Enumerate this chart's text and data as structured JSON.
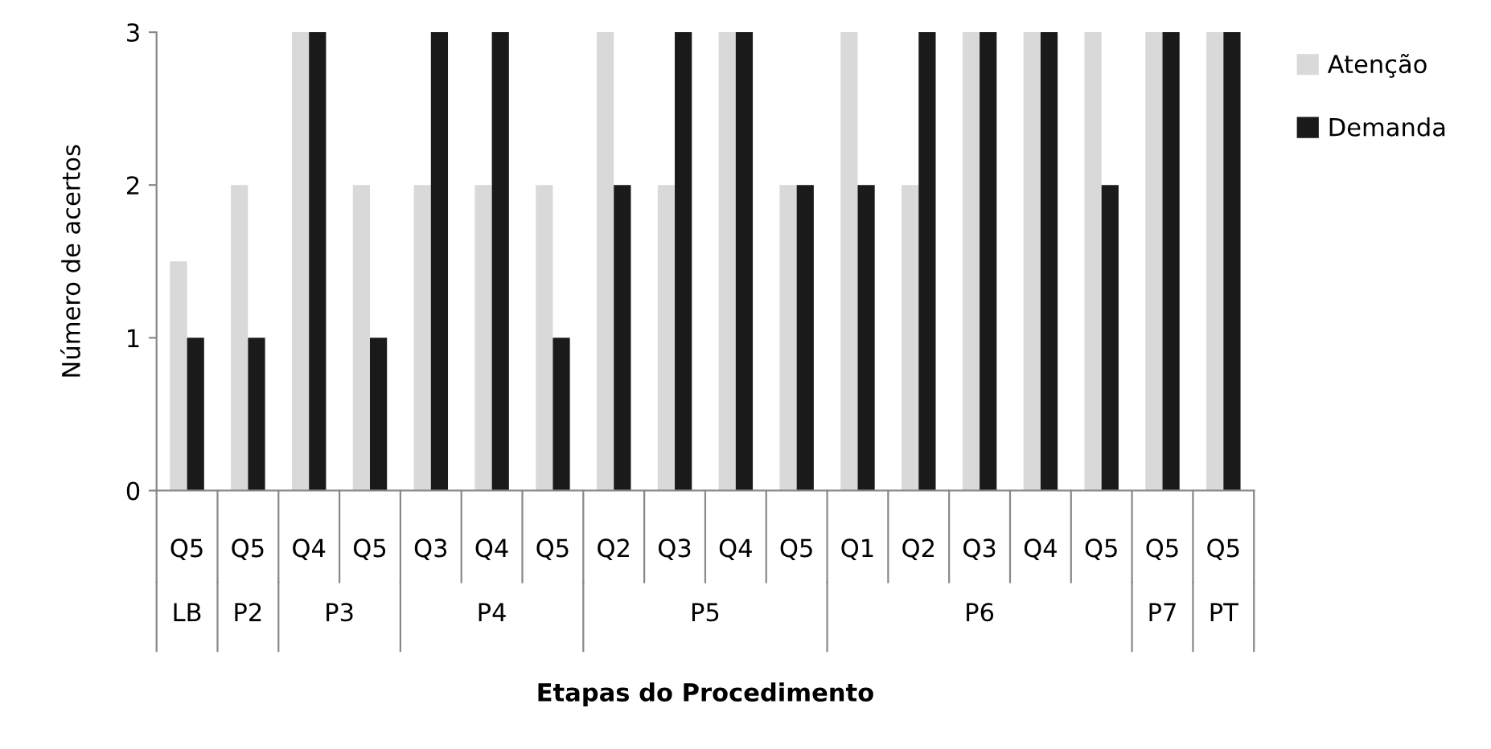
{
  "chart_data": {
    "type": "bar",
    "xlabel": "Etapas do Procedimento",
    "ylabel": "Número de acertos",
    "categories": [
      "Q5",
      "Q5",
      "Q4",
      "Q5",
      "Q3",
      "Q4",
      "Q5",
      "Q2",
      "Q3",
      "Q4",
      "Q5",
      "Q1",
      "Q2",
      "Q3",
      "Q4",
      "Q5",
      "Q5",
      "Q5"
    ],
    "series": [
      {
        "name": "Atenção",
        "color": "#d9d9d9",
        "values": [
          1.5,
          2,
          3,
          2,
          2,
          2,
          2,
          3,
          2,
          3,
          2,
          3,
          2,
          3,
          3,
          3,
          3,
          3
        ]
      },
      {
        "name": "Demanda",
        "color": "#1a1a1a",
        "values": [
          1,
          1,
          3,
          1,
          3,
          3,
          1,
          2,
          3,
          3,
          2,
          2,
          3,
          3,
          3,
          2,
          3,
          3
        ]
      }
    ],
    "annotations": [
      "LB",
      "P2",
      "P3",
      "P4",
      "P5",
      "P6",
      "P7",
      "PT"
    ],
    "ylim": [
      0,
      3
    ],
    "yticks": [
      0,
      1,
      2,
      3
    ],
    "legend": "right",
    "grid": false
  }
}
